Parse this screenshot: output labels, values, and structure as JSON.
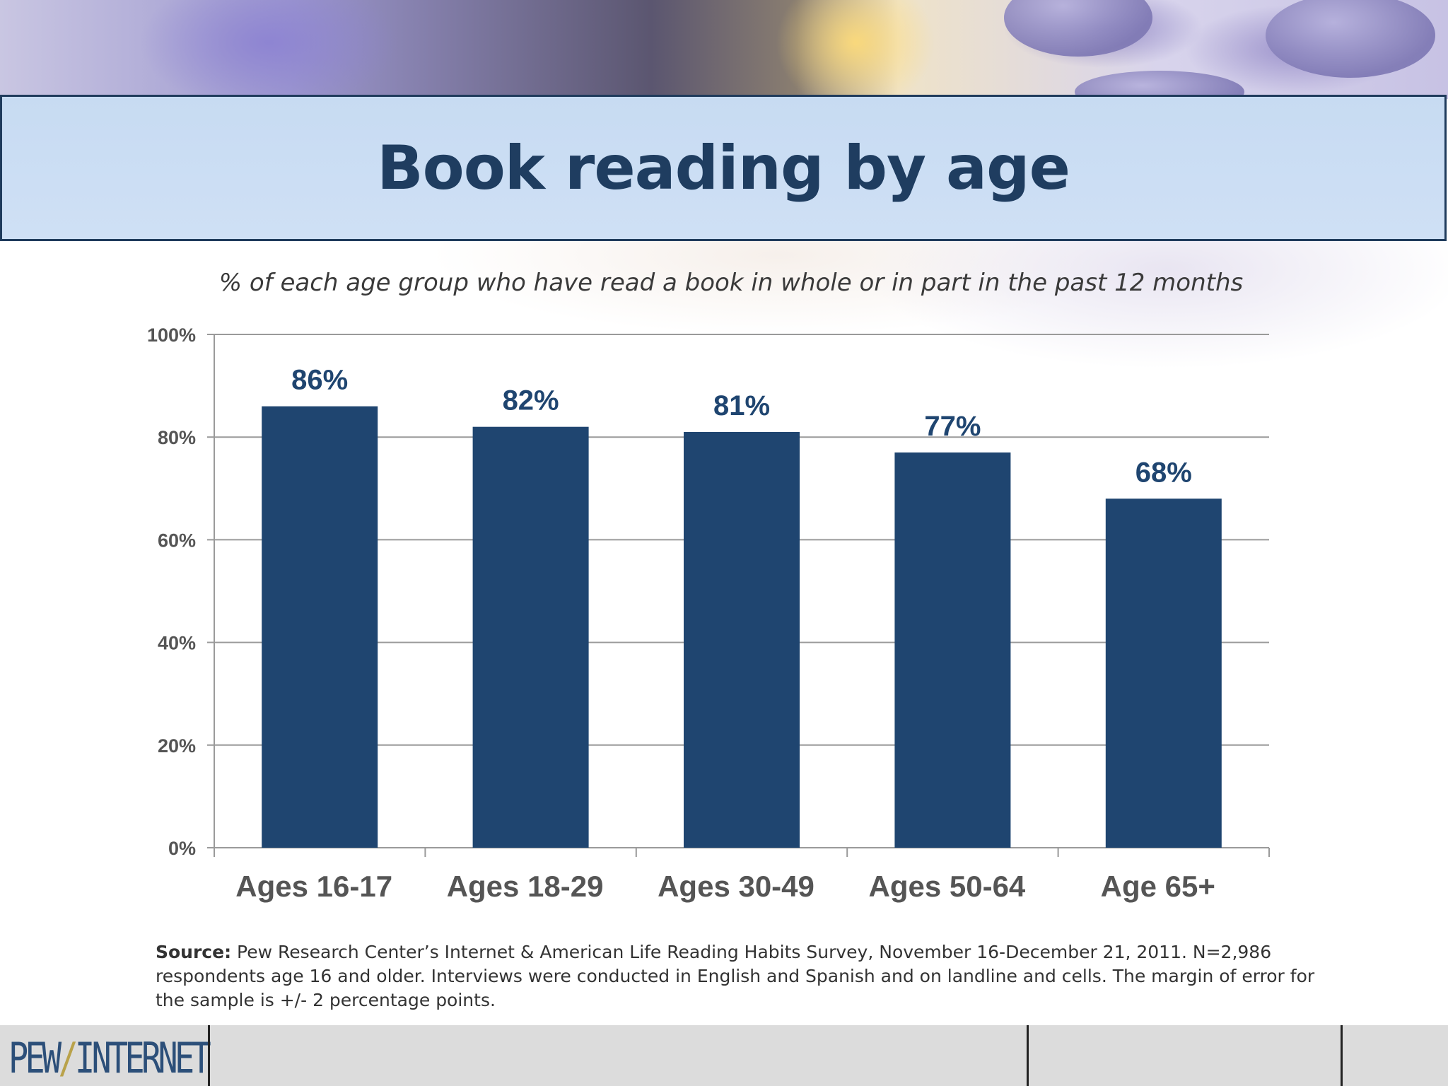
{
  "slide": {
    "title": "Book reading by age",
    "subtitle": "% of each age group who have read a book in whole or in part in the past 12 months",
    "source_label": "Source:",
    "source_text": "Pew Research Center’s Internet & American Life Reading Habits Survey, November 16-December 21, 2011. N=2,986 respondents age 16 and older. Interviews were conducted in English and Spanish and on landline and cells. The margin of error for the sample is +/- 2 percentage points.",
    "logo_left": "PEW",
    "logo_slash": "/",
    "logo_right": "INTERNET"
  },
  "colors": {
    "bar": "#1f4570",
    "data_label": "#1f4570",
    "grid": "#9a9a9a",
    "tick_label": "#555555",
    "category_label": "#555555"
  },
  "chart_data": {
    "type": "bar",
    "title": "Book reading by age",
    "subtitle": "% of each age group who have read a book in whole or in part in the past 12 months",
    "categories": [
      "Ages 16-17",
      "Ages 18-29",
      "Ages 30-49",
      "Ages 50-64",
      "Age 65+"
    ],
    "values": [
      86,
      82,
      81,
      77,
      68
    ],
    "data_labels": [
      "86%",
      "82%",
      "81%",
      "77%",
      "68%"
    ],
    "ylim": [
      0,
      100
    ],
    "yticks": [
      0,
      20,
      40,
      60,
      80,
      100
    ],
    "ytick_labels": [
      "0%",
      "20%",
      "40%",
      "60%",
      "80%",
      "100%"
    ],
    "grid": true,
    "legend": "none"
  }
}
